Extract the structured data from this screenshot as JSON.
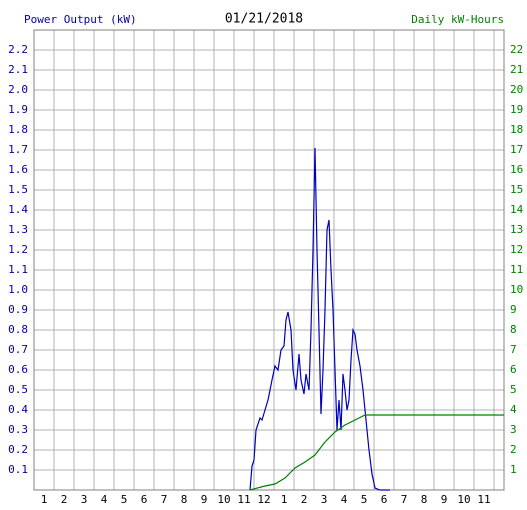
{
  "chart_data": {
    "type": "line",
    "title": "01/21/2018",
    "y_label": "Power Output (kW)",
    "y2_label": "Daily kW-Hours",
    "grid": true,
    "xlim": [
      0.5,
      24
    ],
    "xticks": [
      1,
      2,
      3,
      4,
      5,
      6,
      7,
      8,
      9,
      10,
      11,
      12,
      {
        "value": 13,
        "label": "1"
      },
      {
        "value": 14,
        "label": "2"
      },
      {
        "value": 15,
        "label": "3"
      },
      {
        "value": 16,
        "label": "4"
      },
      {
        "value": 17,
        "label": "5"
      },
      {
        "value": 18,
        "label": "6"
      },
      {
        "value": 19,
        "label": "7"
      },
      {
        "value": 20,
        "label": "8"
      },
      {
        "value": 21,
        "label": "9"
      },
      {
        "value": 22,
        "label": "10"
      },
      {
        "value": 23,
        "label": "11"
      }
    ],
    "ylim": [
      0,
      2.3
    ],
    "yticks": [
      0.1,
      0.2,
      0.3,
      0.4,
      0.5,
      0.6,
      0.7,
      0.8,
      0.9,
      {
        "value": 1,
        "label": "1.0"
      },
      1.1,
      1.2,
      1.3,
      1.4,
      1.5,
      1.6,
      1.7,
      1.8,
      1.9,
      {
        "value": 2,
        "label": "2.0"
      },
      2.1,
      2.2
    ],
    "y2lim": [
      0,
      23
    ],
    "y2ticks": [
      1,
      2,
      3,
      4,
      5,
      6,
      7,
      8,
      9,
      10,
      11,
      12,
      13,
      14,
      15,
      16,
      17,
      18,
      19,
      20,
      21,
      22
    ],
    "series": [
      {
        "color": "#0000c0",
        "x": [
          11.3,
          11.4,
          11.5,
          11.6,
          11.8,
          11.9,
          12.05,
          12.2,
          12.4,
          12.55,
          12.7,
          12.85,
          13.0,
          13.1,
          13.2,
          13.35,
          13.45,
          13.6,
          13.75,
          13.85,
          14.0,
          14.1,
          14.25,
          14.35,
          14.45,
          14.55,
          14.65,
          14.75,
          14.85,
          14.95,
          15.05,
          15.15,
          15.25,
          15.35,
          15.45,
          15.55,
          15.65,
          15.75,
          15.85,
          15.95,
          16.05,
          16.15,
          16.25,
          16.35,
          16.45,
          16.55,
          16.65,
          16.8,
          16.95,
          17.1,
          17.25,
          17.4,
          17.55,
          17.8,
          18.3
        ],
        "values": [
          0,
          0.12,
          0.15,
          0.3,
          0.36,
          0.35,
          0.4,
          0.45,
          0.55,
          0.62,
          0.6,
          0.7,
          0.72,
          0.85,
          0.89,
          0.8,
          0.6,
          0.5,
          0.68,
          0.55,
          0.48,
          0.58,
          0.5,
          0.8,
          1.2,
          1.71,
          1.2,
          0.8,
          0.38,
          0.6,
          0.9,
          1.3,
          1.35,
          1.1,
          0.9,
          0.6,
          0.3,
          0.45,
          0.3,
          0.58,
          0.5,
          0.4,
          0.45,
          0.65,
          0.8,
          0.78,
          0.7,
          0.62,
          0.5,
          0.35,
          0.2,
          0.08,
          0.01,
          0,
          0
        ]
      },
      {
        "color": "#008000",
        "axis": "y2",
        "x": [
          11.3,
          12.05,
          12.55,
          13.05,
          13.55,
          14.05,
          14.55,
          15.05,
          15.55,
          16.05,
          16.55,
          17.05,
          17.55,
          24
        ],
        "values": [
          0,
          0.2,
          0.3,
          0.6,
          1.1,
          1.4,
          1.75,
          2.4,
          2.9,
          3.25,
          3.5,
          3.75,
          3.75,
          3.75
        ]
      }
    ]
  }
}
